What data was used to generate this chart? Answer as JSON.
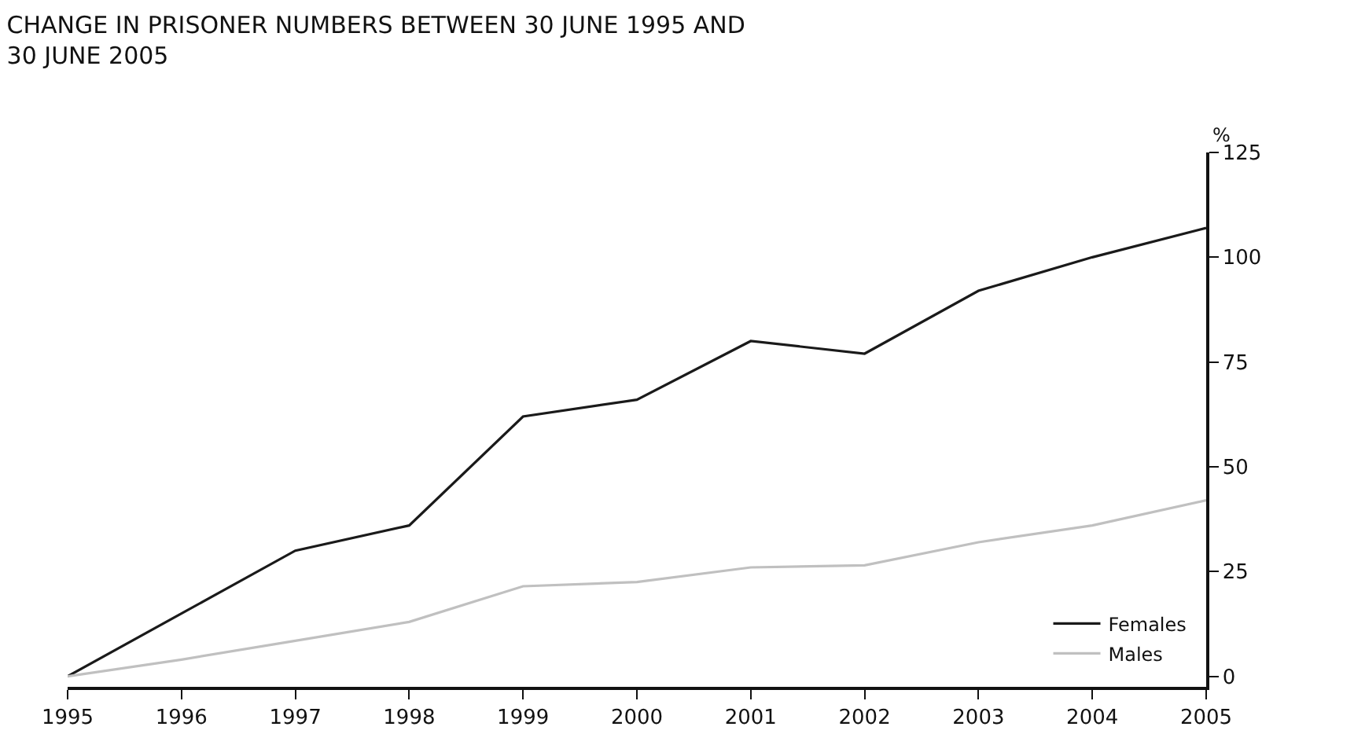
{
  "chart_data": {
    "type": "line",
    "title": "CHANGE IN PRISONER NUMBERS BETWEEN 30 JUNE 1995 AND\n30 JUNE 2005",
    "ylabel": "%",
    "x": [
      1995,
      1996,
      1997,
      1998,
      1999,
      2000,
      2001,
      2002,
      2003,
      2004,
      2005
    ],
    "series": [
      {
        "name": "Females",
        "color": "#1a1a1a",
        "values": [
          0,
          15,
          30,
          36,
          62,
          66,
          80,
          77,
          92,
          100,
          107
        ]
      },
      {
        "name": "Males",
        "color": "#c0c0c0",
        "values": [
          0,
          4,
          8.5,
          13,
          21.5,
          22.5,
          26,
          26.5,
          32,
          36,
          42
        ]
      }
    ],
    "xlim": [
      1995,
      2005
    ],
    "xticks": [
      1995,
      1996,
      1997,
      1998,
      1999,
      2000,
      2001,
      2002,
      2003,
      2004,
      2005
    ],
    "ylim": [
      -2.5,
      125
    ],
    "yticks": [
      0,
      25,
      50,
      75,
      100,
      125
    ],
    "grid": false,
    "legend": "bottom right",
    "marker": "none",
    "line_style": "solid"
  }
}
